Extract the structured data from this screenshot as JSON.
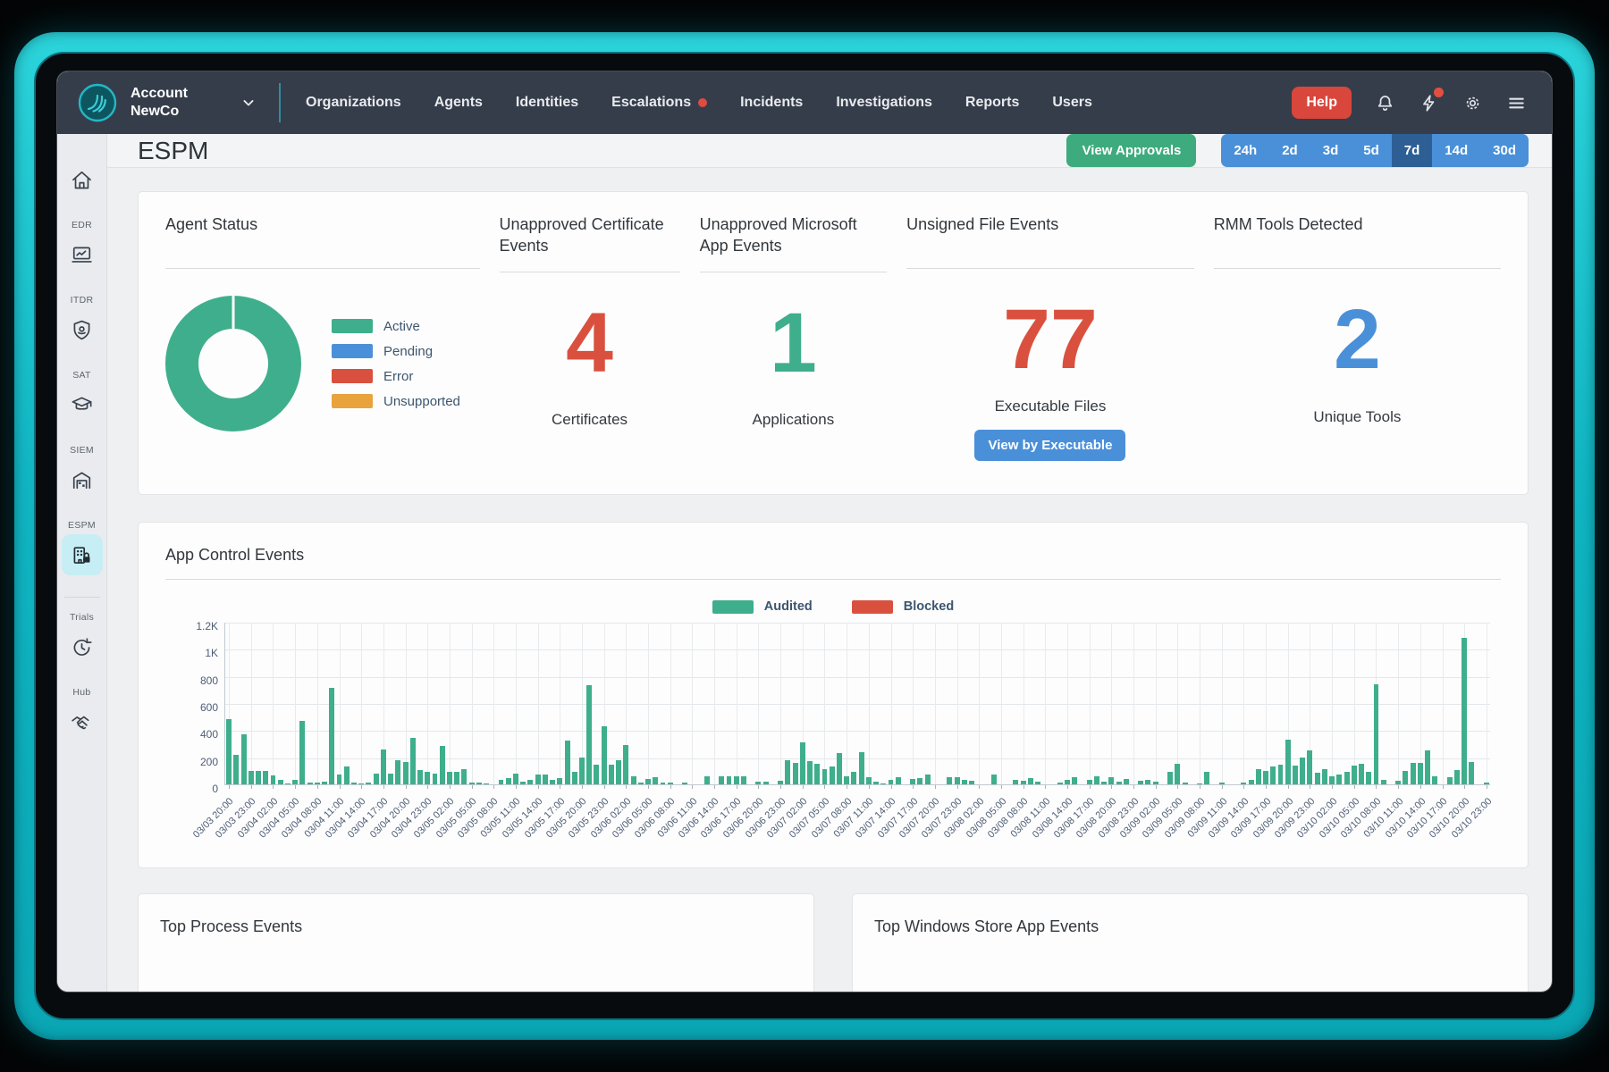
{
  "colors": {
    "bezel_teal": "#10b5c2",
    "nav_bg": "#363d4a",
    "green": "#3fae8c",
    "blue": "#4a90d9",
    "red": "#d9513e",
    "orange": "#e8a33d",
    "help_red": "#d8463c",
    "approvals_green": "#3eab7e",
    "pill_blue": "#4a90d9",
    "pill_selected_blue": "#2d5f94",
    "sidebar_active_bg": "#c6eef4"
  },
  "nav": {
    "account_label": "Account",
    "account_name": "NewCo",
    "help_label": "Help",
    "items": [
      {
        "label": "Organizations",
        "badge": false
      },
      {
        "label": "Agents",
        "badge": false
      },
      {
        "label": "Identities",
        "badge": false
      },
      {
        "label": "Escalations",
        "badge": true
      },
      {
        "label": "Incidents",
        "badge": false
      },
      {
        "label": "Investigations",
        "badge": false
      },
      {
        "label": "Reports",
        "badge": false
      },
      {
        "label": "Users",
        "badge": false
      }
    ],
    "right_icons": [
      "bell-icon",
      "bolt-icon",
      "gear-icon",
      "menu-icon"
    ],
    "bolt_has_notification_dot": true
  },
  "sidebar": {
    "items": [
      {
        "label": "",
        "icon": "home-icon",
        "active": false
      },
      {
        "label": "EDR",
        "icon": "edr-icon",
        "active": false
      },
      {
        "label": "ITDR",
        "icon": "itdr-icon",
        "active": false
      },
      {
        "label": "SAT",
        "icon": "sat-icon",
        "active": false
      },
      {
        "label": "SIEM",
        "icon": "siem-icon",
        "active": false
      },
      {
        "label": "ESPM",
        "icon": "espm-icon",
        "active": true
      },
      {
        "label": "Trials",
        "icon": "trials-icon",
        "active": false,
        "separator_before": true
      },
      {
        "label": "Hub",
        "icon": "hub-icon",
        "active": false
      }
    ]
  },
  "header": {
    "title": "ESPM",
    "view_approvals_label": "View Approvals",
    "time_ranges": [
      "24h",
      "2d",
      "3d",
      "5d",
      "7d",
      "14d",
      "30d"
    ],
    "selected_range": "7d"
  },
  "cards": {
    "agent_status": {
      "title": "Agent Status"
    },
    "cert_events": {
      "title": "Unapproved Certificate Events",
      "value": "4",
      "label": "Certificates"
    },
    "ms_app_events": {
      "title": "Unapproved Microsoft App Events",
      "value": "1",
      "label": "Applications"
    },
    "unsigned_files": {
      "title": "Unsigned File Events",
      "value": "77",
      "label": "Executable Files",
      "button_label": "View by Executable"
    },
    "rmm_tools": {
      "title": "RMM Tools Detected",
      "value": "2",
      "label": "Unique Tools"
    }
  },
  "app_control": {
    "title": "App Control Events"
  },
  "bottom": {
    "left_title": "Top Process Events",
    "right_title": "Top Windows Store App Events"
  },
  "chart_data": [
    {
      "type": "pie",
      "donut": true,
      "title": "Agent Status",
      "labels": [
        "Active",
        "Pending",
        "Error",
        "Unsupported"
      ],
      "values": [
        100,
        0,
        0,
        0
      ],
      "colors": [
        "#3fae8c",
        "#4a90d9",
        "#d9513e",
        "#e8a33d"
      ],
      "legend_position": "right"
    },
    {
      "type": "bar",
      "title": "App Control Events",
      "legend_position": "top",
      "grid": true,
      "ylim": [
        0,
        1200
      ],
      "y_tick_labels": [
        "0",
        "200",
        "400",
        "600",
        "800",
        "1K",
        "1.2K"
      ],
      "x_interval_hours": 1,
      "x_tick_every_n_bars": 3,
      "x_tick_labels": [
        "03/03 20:00",
        "03/03 23:00",
        "03/04 02:00",
        "03/04 05:00",
        "03/04 08:00",
        "03/04 11:00",
        "03/04 14:00",
        "03/04 17:00",
        "03/04 20:00",
        "03/04 23:00",
        "03/05 02:00",
        "03/05 05:00",
        "03/05 08:00",
        "03/05 11:00",
        "03/05 14:00",
        "03/05 17:00",
        "03/05 20:00",
        "03/05 23:00",
        "03/06 02:00",
        "03/06 05:00",
        "03/06 08:00",
        "03/06 11:00",
        "03/06 14:00",
        "03/06 17:00",
        "03/06 20:00",
        "03/06 23:00",
        "03/07 02:00",
        "03/07 05:00",
        "03/07 08:00",
        "03/07 11:00",
        "03/07 14:00",
        "03/07 17:00",
        "03/07 20:00",
        "03/07 23:00",
        "03/08 02:00",
        "03/08 05:00",
        "03/08 08:00",
        "03/08 11:00",
        "03/08 14:00",
        "03/08 17:00",
        "03/08 20:00",
        "03/08 23:00",
        "03/09 02:00",
        "03/09 05:00",
        "03/09 08:00",
        "03/09 11:00",
        "03/09 14:00",
        "03/09 17:00",
        "03/09 20:00",
        "03/09 23:00",
        "03/10 02:00",
        "03/10 05:00",
        "03/10 08:00",
        "03/10 11:00",
        "03/10 14:00",
        "03/10 17:00",
        "03/10 20:00",
        "03/10 23:00"
      ],
      "series": [
        {
          "name": "Audited",
          "color": "#3fae8c",
          "values": [
            480,
            220,
            370,
            100,
            100,
            100,
            65,
            30,
            5,
            30,
            465,
            10,
            10,
            20,
            715,
            70,
            130,
            10,
            5,
            10,
            80,
            255,
            80,
            180,
            165,
            345,
            105,
            90,
            80,
            285,
            95,
            90,
            110,
            15,
            10,
            5,
            0,
            30,
            45,
            80,
            20,
            35,
            75,
            75,
            30,
            45,
            320,
            90,
            200,
            730,
            145,
            430,
            145,
            175,
            290,
            60,
            15,
            40,
            55,
            15,
            10,
            0,
            10,
            0,
            0,
            60,
            0,
            60,
            60,
            60,
            60,
            0,
            20,
            20,
            0,
            25,
            175,
            160,
            310,
            170,
            150,
            110,
            130,
            230,
            60,
            90,
            240,
            50,
            20,
            5,
            35,
            50,
            0,
            40,
            45,
            70,
            0,
            0,
            55,
            50,
            35,
            25,
            0,
            0,
            70,
            0,
            0,
            30,
            25,
            45,
            20,
            0,
            0,
            15,
            35,
            50,
            0,
            30,
            60,
            20,
            55,
            20,
            40,
            0,
            25,
            35,
            20,
            0,
            90,
            150,
            15,
            0,
            5,
            95,
            0,
            15,
            0,
            0,
            10,
            30,
            115,
            100,
            130,
            145,
            330,
            140,
            195,
            250,
            85,
            110,
            60,
            75,
            95,
            140,
            150,
            90,
            740,
            35,
            0,
            25,
            100,
            160,
            160,
            250,
            60,
            0,
            55,
            105,
            1080,
            165,
            0,
            10
          ]
        },
        {
          "name": "Blocked",
          "color": "#d9513e",
          "values_note": "no blocked events visible in range (all zero)",
          "values": []
        }
      ]
    }
  ]
}
